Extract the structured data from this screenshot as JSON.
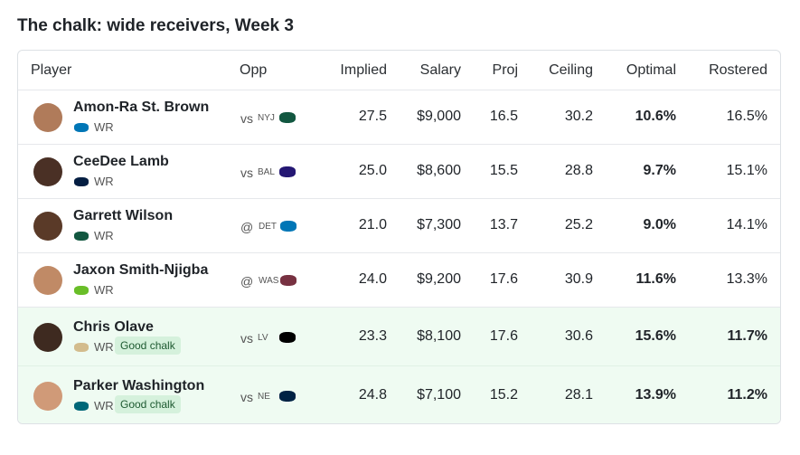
{
  "header": {
    "title": "The chalk: wide receivers, Week 3"
  },
  "table": {
    "columns": [
      "Player",
      "Opp",
      "Implied",
      "Salary",
      "Proj",
      "Ceiling",
      "Optimal",
      "Rostered"
    ],
    "rows": [
      {
        "player": "Amon-Ra St. Brown",
        "position": "WR",
        "opp_prefix": "vs",
        "opp_team": "NYJ",
        "implied": "27.5",
        "salary": "$9,000",
        "proj": "16.5",
        "ceiling": "30.2",
        "optimal": "10.6%",
        "rostered": "16.5%"
      },
      {
        "player": "CeeDee Lamb",
        "position": "WR",
        "opp_prefix": "vs",
        "opp_team": "BAL",
        "implied": "25.0",
        "salary": "$8,600",
        "proj": "15.5",
        "ceiling": "28.8",
        "optimal": "9.7%",
        "rostered": "15.1%"
      },
      {
        "player": "Garrett Wilson",
        "position": "WR",
        "opp_prefix": "@",
        "opp_team": "DET",
        "implied": "21.0",
        "salary": "$7,300",
        "proj": "13.7",
        "ceiling": "25.2",
        "optimal": "9.0%",
        "rostered": "14.1%"
      },
      {
        "player": "Jaxon Smith-Njigba",
        "position": "WR",
        "opp_prefix": "@",
        "opp_team": "WAS",
        "implied": "24.0",
        "salary": "$9,200",
        "proj": "17.6",
        "ceiling": "30.9",
        "optimal": "11.6%",
        "rostered": "13.3%"
      },
      {
        "player": "Chris Olave",
        "position": "WR",
        "badge": "Good chalk",
        "opp_prefix": "vs",
        "opp_team": "LV",
        "implied": "23.3",
        "salary": "$8,100",
        "proj": "17.6",
        "ceiling": "30.6",
        "optimal": "15.6%",
        "rostered": "11.7%"
      },
      {
        "player": "Parker Washington",
        "position": "WR",
        "badge": "Good chalk",
        "opp_prefix": "vs",
        "opp_team": "NE",
        "implied": "24.8",
        "salary": "$7,100",
        "proj": "15.2",
        "ceiling": "28.1",
        "optimal": "13.9%",
        "rostered": "11.2%"
      }
    ]
  }
}
